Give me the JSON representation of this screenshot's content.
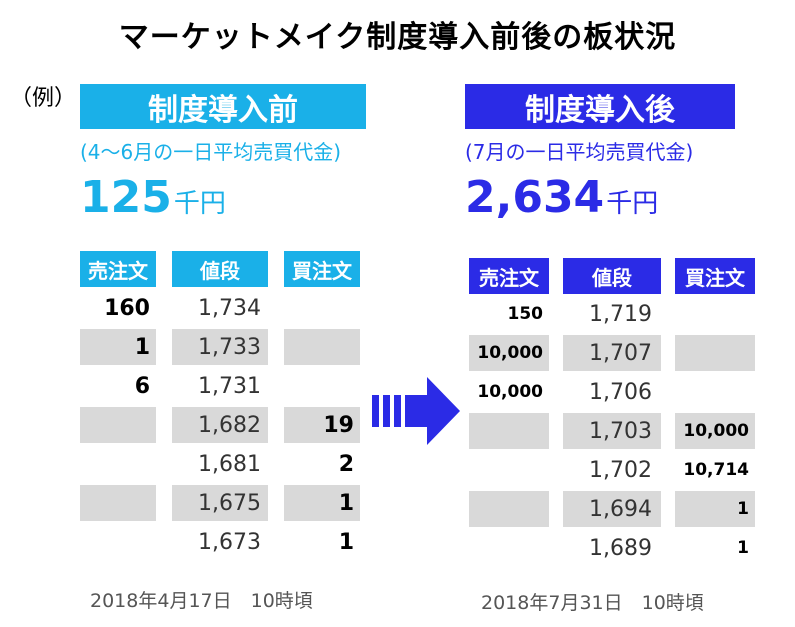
{
  "title": "マーケットメイク制度導入前後の板状況",
  "example_label": "（例）",
  "colors": {
    "before_accent": "#1ab0e8",
    "after_accent": "#2b2be6",
    "row_shade": "#d9d9d9"
  },
  "before": {
    "header": "制度導入前",
    "subtitle": "(4～6月の一日平均売買代金)",
    "amount": "125",
    "unit": "千円",
    "columns": {
      "sell": "売注文",
      "price": "値段",
      "buy": "買注文"
    },
    "rows": [
      {
        "sell": "160",
        "price": "1,734",
        "buy": ""
      },
      {
        "sell": "1",
        "price": "1,733",
        "buy": ""
      },
      {
        "sell": "6",
        "price": "1,731",
        "buy": ""
      },
      {
        "sell": "",
        "price": "1,682",
        "buy": "19"
      },
      {
        "sell": "",
        "price": "1,681",
        "buy": "2"
      },
      {
        "sell": "",
        "price": "1,675",
        "buy": "1"
      },
      {
        "sell": "",
        "price": "1,673",
        "buy": "1"
      }
    ],
    "date": "2018年4月17日　10時頃"
  },
  "after": {
    "header": "制度導入後",
    "subtitle": "(7月の一日平均売買代金)",
    "amount": "2,634",
    "unit": "千円",
    "columns": {
      "sell": "売注文",
      "price": "値段",
      "buy": "買注文"
    },
    "rows": [
      {
        "sell": "150",
        "price": "1,719",
        "buy": ""
      },
      {
        "sell": "10,000",
        "price": "1,707",
        "buy": ""
      },
      {
        "sell": "10,000",
        "price": "1,706",
        "buy": ""
      },
      {
        "sell": "",
        "price": "1,703",
        "buy": "10,000"
      },
      {
        "sell": "",
        "price": "1,702",
        "buy": "10,714"
      },
      {
        "sell": "",
        "price": "1,694",
        "buy": "1"
      },
      {
        "sell": "",
        "price": "1,689",
        "buy": "1"
      }
    ],
    "date": "2018年7月31日　10時頃"
  }
}
